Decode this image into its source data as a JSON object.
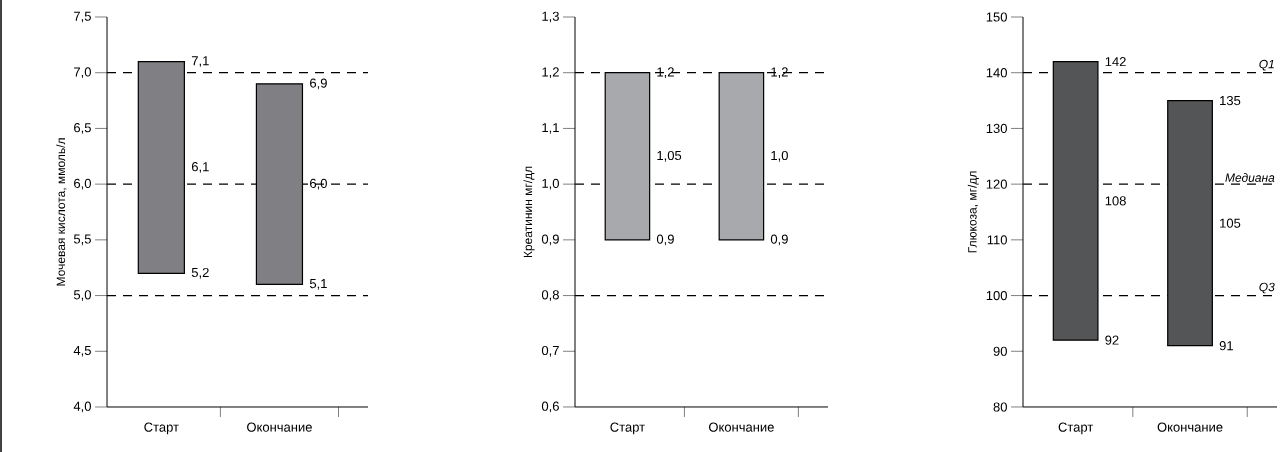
{
  "chart_data": [
    {
      "type": "bar",
      "categories": [
        "Старт",
        "Окончание"
      ],
      "base": [
        5.2,
        5.1
      ],
      "values": [
        1.9,
        1.8
      ],
      "color": "#808084",
      "ylabel": "Мочевая кислота, ммоль/л",
      "ylim": [
        4.0,
        7.5
      ],
      "yticks": [
        {
          "value": 4.0,
          "label": "4,0"
        },
        {
          "value": 4.5,
          "label": "4,5"
        },
        {
          "value": 5.0,
          "label": "5,0"
        },
        {
          "value": 5.5,
          "label": "5,5"
        },
        {
          "value": 6.0,
          "label": "6,0"
        },
        {
          "value": 6.5,
          "label": "6,5"
        },
        {
          "value": 7.0,
          "label": "7,0"
        },
        {
          "value": 7.5,
          "label": "7,5"
        }
      ],
      "ref_lines": [
        {
          "axis": "y",
          "value": 7.0,
          "color": "#000000",
          "line_style": "dashed"
        },
        {
          "axis": "y",
          "value": 6.0,
          "color": "#000000",
          "line_style": "dashed"
        },
        {
          "axis": "y",
          "value": 5.0,
          "color": "#000000",
          "line_style": "dashed"
        }
      ],
      "annotations": [
        {
          "text": "7,1",
          "x": "Старт",
          "y": 7.1
        },
        "6,1",
        {
          "text": "5,2",
          "x": "Старт",
          "y": 5.2
        },
        {
          "text": "6,9",
          "x": "Окончание",
          "y": 6.9
        },
        "6,0",
        {
          "text": "5,1",
          "x": "Окончание",
          "y": 5.1
        }
      ]
    },
    {
      "type": "bar",
      "categories": [
        "Старт",
        "Окончание"
      ],
      "base": [
        0.9,
        0.9
      ],
      "values": [
        0.3,
        0.3
      ],
      "color": "#a7a9ac",
      "ylabel": "Креатинин мг/дл",
      "ylim": [
        0.6,
        1.3
      ],
      "yticks": [
        {
          "value": 0.6,
          "label": "0,6"
        },
        {
          "value": 0.7,
          "label": "0,7"
        },
        {
          "value": 0.8,
          "label": "0,8"
        },
        {
          "value": 0.9,
          "label": "0,9"
        },
        {
          "value": 1.0,
          "label": "1,0"
        },
        {
          "value": 1.1,
          "label": "1,1"
        },
        {
          "value": 1.2,
          "label": "1,2"
        },
        {
          "value": 1.3,
          "label": "1,3"
        }
      ],
      "ref_lines": [
        {
          "axis": "y",
          "value": 1.2,
          "color": "#000000",
          "line_style": "dashed"
        },
        {
          "axis": "y",
          "value": 1.0,
          "color": "#000000",
          "line_style": "dashed"
        },
        {
          "axis": "y",
          "value": 0.8,
          "color": "#000000",
          "line_style": "dashed"
        }
      ],
      "annotations": [
        {
          "text": "1,2",
          "x": "Старт",
          "y": 1.2
        },
        "1,05",
        {
          "text": "0,9",
          "x": "Старт",
          "y": 0.9
        },
        {
          "text": "1,2",
          "x": "Окончание",
          "y": 1.2
        },
        "1,0",
        {
          "text": "0,9",
          "x": "Окончание",
          "y": 0.9
        }
      ]
    },
    {
      "type": "bar",
      "categories": [
        "Старт",
        "Окончание"
      ],
      "base": [
        92,
        91
      ],
      "values": [
        50,
        44
      ],
      "color": "#545557",
      "ylabel": "Глюкоза, мг/дл",
      "ylim": [
        80,
        150
      ],
      "yticks": [
        80,
        90,
        100,
        110,
        120,
        130,
        140,
        150
      ],
      "ref_lines": [
        {
          "axis": "y",
          "value": 140,
          "label": "Q1",
          "color": "#000000",
          "line_style": "dashed"
        },
        {
          "axis": "y",
          "value": 120,
          "label": "Медиана",
          "color": "#000000",
          "line_style": "dashed"
        },
        {
          "axis": "y",
          "value": 100,
          "label": "Q3",
          "color": "#000000",
          "line_style": "dashed"
        }
      ],
      "annotations": [
        {
          "text": "142",
          "x": "Старт",
          "y": 142
        },
        "108",
        {
          "text": "92",
          "x": "Старт",
          "y": 92
        },
        {
          "text": "135",
          "x": "Окончание",
          "y": 135
        },
        "105",
        {
          "text": "91",
          "x": "Окончание",
          "y": 91
        }
      ]
    }
  ]
}
